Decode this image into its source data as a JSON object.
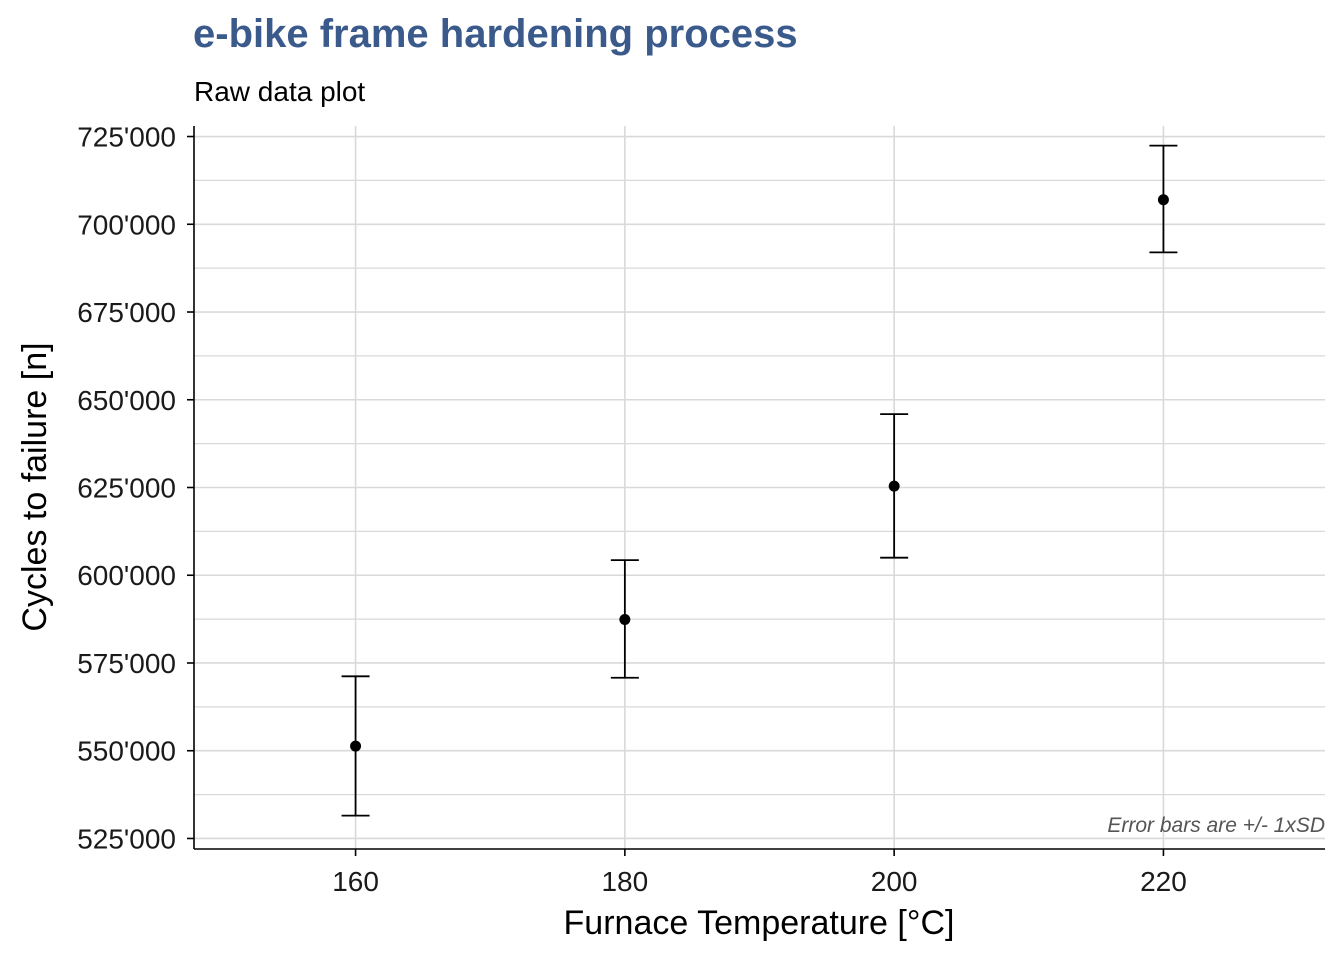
{
  "chart_data": {
    "type": "scatter",
    "title": "e-bike frame hardening process",
    "subtitle": "Raw data plot",
    "xlabel": "Furnace Temperature [°C]",
    "ylabel": "Cycles to failure [n]",
    "caption": "Error bars are +/- 1xSD",
    "xlim": [
      148,
      232
    ],
    "ylim": [
      522000,
      728000
    ],
    "x_ticks": [
      160,
      180,
      200,
      220
    ],
    "x_tick_labels": [
      "160",
      "180",
      "200",
      "220"
    ],
    "y_ticks": [
      525000,
      550000,
      575000,
      600000,
      625000,
      650000,
      675000,
      700000,
      725000
    ],
    "y_tick_labels": [
      "525'000",
      "550'000",
      "575'000",
      "600'000",
      "625'000",
      "650'000",
      "675'000",
      "700'000",
      "725'000"
    ],
    "grid": true,
    "points": [
      {
        "x": 160,
        "y": 551300,
        "ymin": 531500,
        "ymax": 571200
      },
      {
        "x": 180,
        "y": 587400,
        "ymin": 570800,
        "ymax": 604300
      },
      {
        "x": 200,
        "y": 625400,
        "ymin": 605000,
        "ymax": 645900
      },
      {
        "x": 220,
        "y": 707000,
        "ymin": 692000,
        "ymax": 722400
      }
    ],
    "point_color": "#000000",
    "grid_color": "#d9d9d9"
  }
}
